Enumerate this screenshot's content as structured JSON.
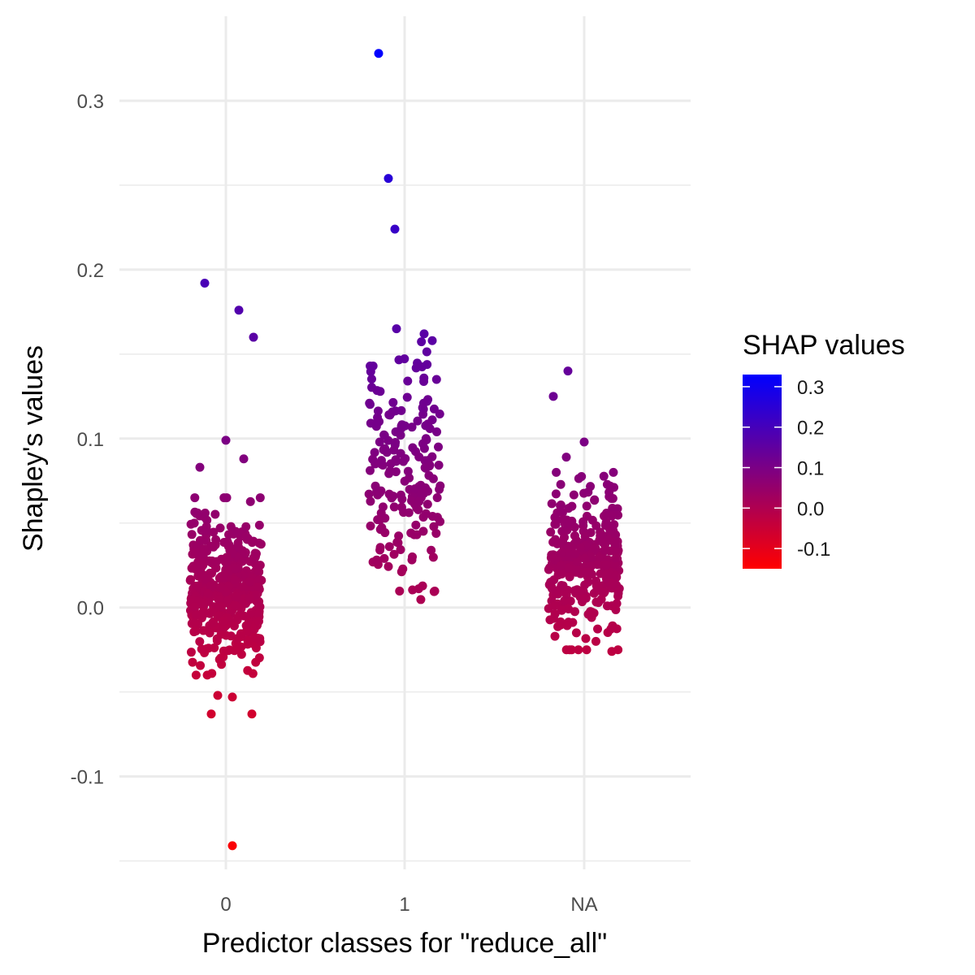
{
  "chart_data": {
    "type": "scatter",
    "title": "",
    "xlabel": "Predictor classes for \"reduce_all\"",
    "ylabel": "Shapley's values",
    "categories": [
      "0",
      "1",
      "NA"
    ],
    "ylim": [
      -0.155,
      0.35
    ],
    "y_ticks": [
      -0.1,
      0.0,
      0.1,
      0.2,
      0.3
    ],
    "y_tick_labels": [
      "-0.1",
      "0.0",
      "0.1",
      "0.2",
      "0.3"
    ],
    "grid": true,
    "color_scale": {
      "title": "SHAP values",
      "low_color": "#ff0000",
      "high_color": "#0000ff",
      "range": [
        -0.15,
        0.33
      ],
      "ticks": [
        -0.1,
        0.0,
        0.1,
        0.2,
        0.3
      ],
      "tick_labels": [
        "-0.1",
        "0.0",
        "0.1",
        "0.2",
        "0.3"
      ],
      "position": "right"
    },
    "groups": [
      {
        "category": "0",
        "point_count": 420,
        "dense_range": [
          -0.04,
          0.065
        ],
        "outliers": [
          {
            "offset": -0.13,
            "value": 0.192
          },
          {
            "offset": 0.08,
            "value": 0.176
          },
          {
            "offset": 0.17,
            "value": 0.16
          },
          {
            "offset": 0.0,
            "value": 0.099
          },
          {
            "offset": 0.11,
            "value": 0.088
          },
          {
            "offset": -0.16,
            "value": 0.083
          },
          {
            "offset": -0.09,
            "value": -0.063
          },
          {
            "offset": 0.16,
            "value": -0.063
          },
          {
            "offset": -0.05,
            "value": -0.052
          },
          {
            "offset": 0.04,
            "value": -0.053
          },
          {
            "offset": 0.04,
            "value": -0.141
          }
        ]
      },
      {
        "category": "1",
        "point_count": 190,
        "dense_range": [
          0.0,
          0.16
        ],
        "outliers": [
          {
            "offset": -0.16,
            "value": 0.328
          },
          {
            "offset": -0.1,
            "value": 0.254
          },
          {
            "offset": -0.06,
            "value": 0.224
          },
          {
            "offset": -0.05,
            "value": 0.165
          },
          {
            "offset": 0.12,
            "value": 0.162
          },
          {
            "offset": 0.17,
            "value": 0.158
          }
        ]
      },
      {
        "category": "NA",
        "point_count": 300,
        "dense_range": [
          -0.025,
          0.08
        ],
        "outliers": [
          {
            "offset": -0.1,
            "value": 0.14
          },
          {
            "offset": -0.19,
            "value": 0.125
          },
          {
            "offset": 0.0,
            "value": 0.098
          },
          {
            "offset": -0.11,
            "value": 0.089
          },
          {
            "offset": -0.18,
            "value": -0.017
          },
          {
            "offset": -0.09,
            "value": -0.025
          },
          {
            "offset": 0.17,
            "value": -0.026
          }
        ]
      }
    ]
  }
}
